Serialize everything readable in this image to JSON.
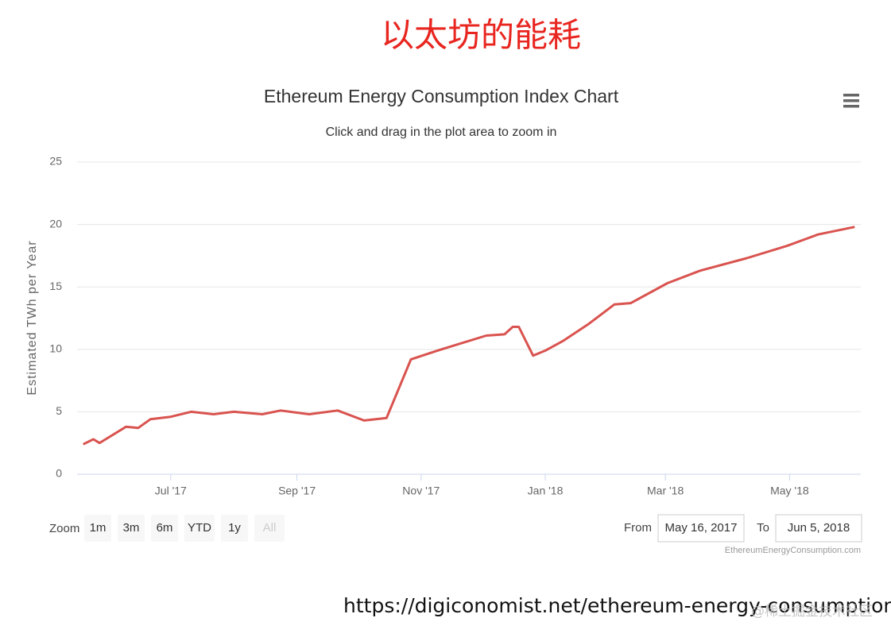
{
  "heading": "以太坊的能耗",
  "chart_data": {
    "type": "line",
    "title": "Ethereum Energy Consumption Index Chart",
    "subtitle": "Click and drag in the plot area to zoom in",
    "y_label": "Estimated TWh per Year",
    "color": "#d9534f",
    "grid": true,
    "x": [
      "2017-05-19",
      "2017-05-24",
      "2017-05-27",
      "2017-06-09",
      "2017-06-15",
      "2017-06-21",
      "2017-07-01",
      "2017-07-11",
      "2017-07-22",
      "2017-08-01",
      "2017-08-15",
      "2017-08-24",
      "2017-09-07",
      "2017-09-21",
      "2017-10-04",
      "2017-10-15",
      "2017-10-27",
      "2017-11-09",
      "2017-11-21",
      "2017-12-03",
      "2017-12-12",
      "2017-12-16",
      "2017-12-19",
      "2017-12-26",
      "2018-01-01",
      "2018-01-10",
      "2018-01-22",
      "2018-02-04",
      "2018-02-12",
      "2018-03-02",
      "2018-03-18",
      "2018-04-10",
      "2018-04-30",
      "2018-05-15",
      "2018-06-02"
    ],
    "values": [
      2.4,
      2.8,
      2.5,
      3.8,
      3.7,
      4.4,
      4.6,
      5.0,
      4.8,
      5.0,
      4.8,
      5.1,
      4.8,
      5.1,
      4.3,
      4.5,
      9.2,
      9.9,
      10.5,
      11.1,
      11.2,
      11.8,
      11.8,
      9.5,
      9.9,
      10.7,
      12.0,
      13.6,
      13.7,
      15.3,
      16.3,
      17.3,
      18.3,
      19.2,
      19.8
    ],
    "xlim": [
      "2017-05-16",
      "2018-06-05"
    ],
    "xticks": [
      {
        "value": "2017-07-01",
        "label": "Jul '17"
      },
      {
        "value": "2017-09-01",
        "label": "Sep '17"
      },
      {
        "value": "2017-11-01",
        "label": "Nov '17"
      },
      {
        "value": "2018-01-01",
        "label": "Jan '18"
      },
      {
        "value": "2018-03-01",
        "label": "Mar '18"
      },
      {
        "value": "2018-05-01",
        "label": "May '18"
      }
    ],
    "ylim": [
      0,
      25
    ],
    "yticks": [
      0,
      5,
      10,
      15,
      20,
      25
    ],
    "zoom_label": "Zoom",
    "zoom_buttons": [
      "1m",
      "3m",
      "6m",
      "YTD",
      "1y",
      "All"
    ],
    "from_label": "From",
    "from": "May 16, 2017",
    "to_label": "To",
    "to": "Jun 5, 2018",
    "credits": "EthereumEnergyConsumption.com"
  },
  "footer_url": "https://digiconomist.net/ethereum-energy-consumption",
  "watermark": "@稀土掘金技术社区"
}
